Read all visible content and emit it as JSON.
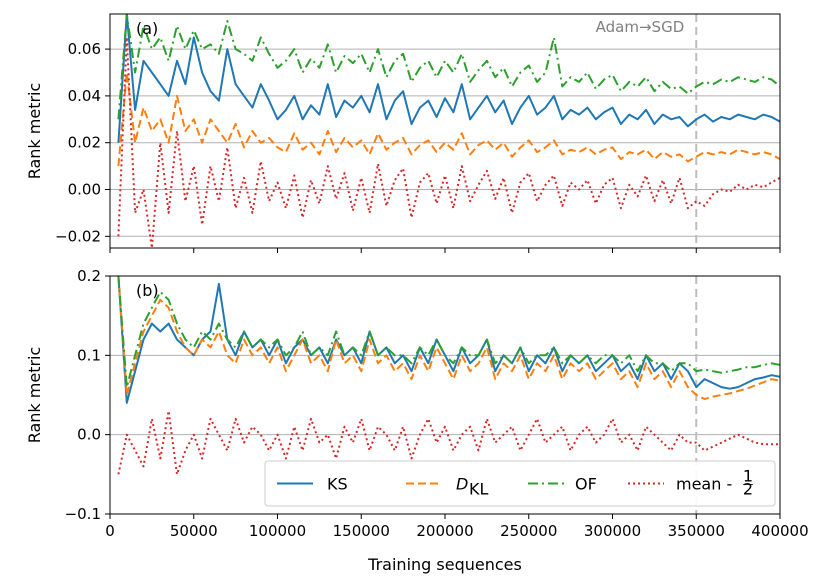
{
  "chart_data": [
    {
      "type": "line",
      "panel_label": "(a)",
      "ylabel": "Rank metric",
      "xlabel": "",
      "xlim": [
        0,
        400000
      ],
      "ylim": [
        -0.025,
        0.075
      ],
      "x_ticks": [
        0,
        50000,
        100000,
        150000,
        200000,
        250000,
        300000,
        350000,
        400000
      ],
      "y_ticks": [
        -0.02,
        0.0,
        0.02,
        0.04,
        0.06
      ],
      "y_tick_labels": [
        "−0.02",
        "0.00",
        "0.02",
        "0.04",
        "0.06"
      ],
      "grid": true,
      "vline": {
        "x": 350000,
        "label": "Adam→SGD"
      },
      "x": [
        5000,
        10000,
        15000,
        20000,
        25000,
        30000,
        35000,
        40000,
        45000,
        50000,
        55000,
        60000,
        65000,
        70000,
        75000,
        80000,
        85000,
        90000,
        95000,
        100000,
        105000,
        110000,
        115000,
        120000,
        125000,
        130000,
        135000,
        140000,
        145000,
        150000,
        155000,
        160000,
        165000,
        170000,
        175000,
        180000,
        185000,
        190000,
        195000,
        200000,
        205000,
        210000,
        215000,
        220000,
        225000,
        230000,
        235000,
        240000,
        245000,
        250000,
        255000,
        260000,
        265000,
        270000,
        275000,
        280000,
        285000,
        290000,
        295000,
        300000,
        305000,
        310000,
        315000,
        320000,
        325000,
        330000,
        335000,
        340000,
        345000,
        350000,
        355000,
        360000,
        365000,
        370000,
        375000,
        380000,
        385000,
        390000,
        395000,
        400000
      ],
      "series": [
        {
          "name": "KS",
          "color": "#1f77b4",
          "values": [
            0.02,
            0.075,
            0.034,
            0.055,
            0.05,
            0.045,
            0.04,
            0.055,
            0.045,
            0.065,
            0.05,
            0.042,
            0.038,
            0.06,
            0.045,
            0.04,
            0.035,
            0.045,
            0.038,
            0.03,
            0.034,
            0.04,
            0.03,
            0.036,
            0.032,
            0.045,
            0.031,
            0.038,
            0.035,
            0.04,
            0.033,
            0.045,
            0.03,
            0.038,
            0.042,
            0.028,
            0.035,
            0.038,
            0.031,
            0.039,
            0.033,
            0.045,
            0.03,
            0.035,
            0.04,
            0.033,
            0.038,
            0.028,
            0.035,
            0.04,
            0.032,
            0.035,
            0.04,
            0.03,
            0.034,
            0.032,
            0.035,
            0.03,
            0.033,
            0.035,
            0.028,
            0.032,
            0.03,
            0.034,
            0.028,
            0.032,
            0.03,
            0.031,
            0.027,
            0.03,
            0.032,
            0.029,
            0.031,
            0.03,
            0.032,
            0.031,
            0.03,
            0.032,
            0.031,
            0.029
          ]
        },
        {
          "name": "D_KL",
          "color": "#ff7f0e",
          "values": [
            0.01,
            0.05,
            0.02,
            0.035,
            0.025,
            0.03,
            0.02,
            0.04,
            0.025,
            0.03,
            0.02,
            0.03,
            0.025,
            0.02,
            0.028,
            0.018,
            0.025,
            0.02,
            0.022,
            0.018,
            0.016,
            0.024,
            0.017,
            0.02,
            0.015,
            0.025,
            0.016,
            0.022,
            0.018,
            0.021,
            0.015,
            0.024,
            0.017,
            0.02,
            0.022,
            0.015,
            0.019,
            0.021,
            0.016,
            0.02,
            0.017,
            0.024,
            0.015,
            0.019,
            0.021,
            0.017,
            0.02,
            0.014,
            0.018,
            0.021,
            0.016,
            0.018,
            0.021,
            0.015,
            0.017,
            0.016,
            0.018,
            0.015,
            0.017,
            0.018,
            0.013,
            0.016,
            0.015,
            0.017,
            0.013,
            0.016,
            0.014,
            0.015,
            0.012,
            0.014,
            0.016,
            0.015,
            0.016,
            0.015,
            0.017,
            0.016,
            0.015,
            0.016,
            0.015,
            0.013
          ]
        },
        {
          "name": "OF",
          "color": "#2ca02c",
          "values": [
            0.03,
            0.075,
            0.05,
            0.07,
            0.06,
            0.065,
            0.055,
            0.07,
            0.06,
            0.068,
            0.06,
            0.062,
            0.058,
            0.072,
            0.06,
            0.058,
            0.055,
            0.065,
            0.058,
            0.052,
            0.055,
            0.06,
            0.05,
            0.056,
            0.052,
            0.062,
            0.05,
            0.057,
            0.054,
            0.058,
            0.05,
            0.06,
            0.048,
            0.055,
            0.058,
            0.046,
            0.052,
            0.055,
            0.048,
            0.055,
            0.05,
            0.058,
            0.046,
            0.051,
            0.055,
            0.048,
            0.052,
            0.044,
            0.05,
            0.053,
            0.046,
            0.05,
            0.065,
            0.044,
            0.048,
            0.046,
            0.05,
            0.043,
            0.047,
            0.049,
            0.042,
            0.046,
            0.044,
            0.048,
            0.042,
            0.046,
            0.043,
            0.044,
            0.041,
            0.044,
            0.046,
            0.045,
            0.047,
            0.046,
            0.048,
            0.047,
            0.046,
            0.048,
            0.047,
            0.044
          ]
        },
        {
          "name": "mean - 1/2",
          "color": "#d62728",
          "values": [
            -0.02,
            0.065,
            -0.01,
            0.0,
            -0.025,
            0.02,
            -0.01,
            0.025,
            -0.005,
            0.01,
            -0.015,
            0.01,
            -0.005,
            0.018,
            -0.008,
            0.005,
            -0.01,
            0.012,
            -0.005,
            0.003,
            -0.008,
            0.006,
            -0.012,
            0.004,
            -0.006,
            0.01,
            -0.004,
            0.007,
            -0.009,
            0.005,
            -0.01,
            0.011,
            -0.007,
            0.004,
            0.009,
            -0.012,
            0.003,
            0.007,
            -0.006,
            0.006,
            -0.008,
            0.01,
            -0.005,
            0.002,
            0.008,
            -0.004,
            0.005,
            -0.01,
            0.003,
            0.007,
            -0.005,
            0.002,
            0.006,
            -0.007,
            0.003,
            0.0,
            0.004,
            -0.006,
            0.002,
            0.005,
            -0.008,
            0.002,
            -0.003,
            0.006,
            -0.005,
            0.004,
            -0.006,
            0.005,
            -0.008,
            -0.005,
            -0.007,
            -0.002,
            0.0,
            -0.001,
            0.002,
            0.0,
            0.002,
            0.001,
            0.003,
            0.005
          ]
        }
      ]
    },
    {
      "type": "line",
      "panel_label": "(b)",
      "ylabel": "Rank metric",
      "xlabel": "Training sequences",
      "xlim": [
        0,
        400000
      ],
      "ylim": [
        -0.1,
        0.2
      ],
      "x_ticks": [
        0,
        50000,
        100000,
        150000,
        200000,
        250000,
        300000,
        350000,
        400000
      ],
      "x_tick_labels": [
        "0",
        "50000",
        "100000",
        "150000",
        "200000",
        "250000",
        "300000",
        "350000",
        "400000"
      ],
      "y_ticks": [
        -0.1,
        0.0,
        0.1,
        0.2
      ],
      "y_tick_labels": [
        "−0.1",
        "0.0",
        "0.1",
        "0.2"
      ],
      "grid": true,
      "vline": {
        "x": 350000
      },
      "legend": {
        "position": "lower-right",
        "entries": [
          "KS",
          "D",
          "KL",
          "OF",
          "mean - ",
          "1",
          "2"
        ]
      },
      "x": [
        5000,
        10000,
        15000,
        20000,
        25000,
        30000,
        35000,
        40000,
        45000,
        50000,
        55000,
        60000,
        65000,
        70000,
        75000,
        80000,
        85000,
        90000,
        95000,
        100000,
        105000,
        110000,
        115000,
        120000,
        125000,
        130000,
        135000,
        140000,
        145000,
        150000,
        155000,
        160000,
        165000,
        170000,
        175000,
        180000,
        185000,
        190000,
        195000,
        200000,
        205000,
        210000,
        215000,
        220000,
        225000,
        230000,
        235000,
        240000,
        245000,
        250000,
        255000,
        260000,
        265000,
        270000,
        275000,
        280000,
        285000,
        290000,
        295000,
        300000,
        305000,
        310000,
        315000,
        320000,
        325000,
        330000,
        335000,
        340000,
        345000,
        350000,
        355000,
        360000,
        365000,
        370000,
        375000,
        380000,
        385000,
        390000,
        395000,
        400000
      ],
      "series": [
        {
          "name": "KS",
          "color": "#1f77b4",
          "values": [
            0.2,
            0.04,
            0.08,
            0.12,
            0.14,
            0.13,
            0.14,
            0.12,
            0.11,
            0.1,
            0.12,
            0.13,
            0.19,
            0.12,
            0.1,
            0.13,
            0.11,
            0.12,
            0.1,
            0.12,
            0.09,
            0.11,
            0.12,
            0.1,
            0.11,
            0.09,
            0.12,
            0.1,
            0.11,
            0.09,
            0.13,
            0.1,
            0.11,
            0.09,
            0.1,
            0.08,
            0.11,
            0.09,
            0.12,
            0.1,
            0.08,
            0.11,
            0.09,
            0.1,
            0.12,
            0.08,
            0.1,
            0.09,
            0.11,
            0.08,
            0.1,
            0.09,
            0.11,
            0.08,
            0.1,
            0.09,
            0.1,
            0.08,
            0.09,
            0.1,
            0.08,
            0.09,
            0.07,
            0.1,
            0.08,
            0.09,
            0.07,
            0.09,
            0.08,
            0.06,
            0.07,
            0.065,
            0.06,
            0.058,
            0.06,
            0.065,
            0.07,
            0.072,
            0.075,
            0.073
          ]
        },
        {
          "name": "D_KL",
          "color": "#ff7f0e",
          "values": [
            0.2,
            0.05,
            0.09,
            0.13,
            0.15,
            0.17,
            0.16,
            0.13,
            0.11,
            0.1,
            0.12,
            0.11,
            0.13,
            0.1,
            0.09,
            0.12,
            0.1,
            0.11,
            0.09,
            0.11,
            0.08,
            0.1,
            0.12,
            0.09,
            0.1,
            0.08,
            0.12,
            0.09,
            0.1,
            0.08,
            0.12,
            0.09,
            0.1,
            0.08,
            0.09,
            0.07,
            0.1,
            0.08,
            0.11,
            0.09,
            0.07,
            0.1,
            0.08,
            0.09,
            0.11,
            0.07,
            0.09,
            0.08,
            0.1,
            0.07,
            0.09,
            0.08,
            0.1,
            0.07,
            0.09,
            0.08,
            0.09,
            0.07,
            0.08,
            0.09,
            0.07,
            0.08,
            0.06,
            0.09,
            0.07,
            0.08,
            0.06,
            0.08,
            0.06,
            0.05,
            0.045,
            0.048,
            0.05,
            0.052,
            0.055,
            0.058,
            0.062,
            0.066,
            0.07,
            0.068
          ]
        },
        {
          "name": "OF",
          "color": "#2ca02c",
          "values": [
            0.2,
            0.06,
            0.1,
            0.14,
            0.16,
            0.18,
            0.17,
            0.14,
            0.12,
            0.11,
            0.13,
            0.12,
            0.14,
            0.12,
            0.11,
            0.13,
            0.11,
            0.12,
            0.11,
            0.12,
            0.1,
            0.11,
            0.13,
            0.1,
            0.11,
            0.1,
            0.13,
            0.1,
            0.11,
            0.1,
            0.13,
            0.1,
            0.11,
            0.1,
            0.1,
            0.09,
            0.11,
            0.1,
            0.12,
            0.1,
            0.09,
            0.11,
            0.1,
            0.1,
            0.12,
            0.09,
            0.1,
            0.09,
            0.11,
            0.09,
            0.1,
            0.1,
            0.11,
            0.09,
            0.1,
            0.09,
            0.1,
            0.09,
            0.1,
            0.1,
            0.09,
            0.1,
            0.08,
            0.1,
            0.09,
            0.09,
            0.08,
            0.09,
            0.09,
            0.08,
            0.082,
            0.08,
            0.078,
            0.08,
            0.082,
            0.085,
            0.085,
            0.088,
            0.09,
            0.088
          ]
        },
        {
          "name": "mean - 1/2",
          "color": "#d62728",
          "values": [
            -0.05,
            0.0,
            -0.02,
            -0.04,
            0.02,
            -0.03,
            0.03,
            -0.05,
            -0.02,
            0.0,
            -0.03,
            0.02,
            0.0,
            -0.02,
            0.02,
            -0.01,
            0.01,
            0.0,
            -0.02,
            0.0,
            -0.03,
            0.01,
            -0.02,
            0.02,
            -0.01,
            0.0,
            -0.03,
            0.01,
            -0.01,
            0.02,
            -0.02,
            0.01,
            0.0,
            -0.02,
            0.01,
            -0.03,
            0.0,
            0.02,
            -0.01,
            0.01,
            -0.02,
            0.0,
            0.01,
            -0.02,
            0.02,
            -0.01,
            0.0,
            0.01,
            -0.02,
            0.0,
            0.02,
            -0.01,
            0.0,
            0.01,
            -0.02,
            0.0,
            0.01,
            -0.01,
            0.0,
            0.02,
            -0.01,
            0.0,
            -0.02,
            0.01,
            0.0,
            -0.01,
            -0.02,
            0.0,
            -0.01,
            -0.01,
            -0.02,
            -0.015,
            -0.01,
            -0.005,
            0.0,
            -0.005,
            -0.01,
            -0.012,
            -0.012,
            -0.012
          ]
        }
      ]
    }
  ]
}
